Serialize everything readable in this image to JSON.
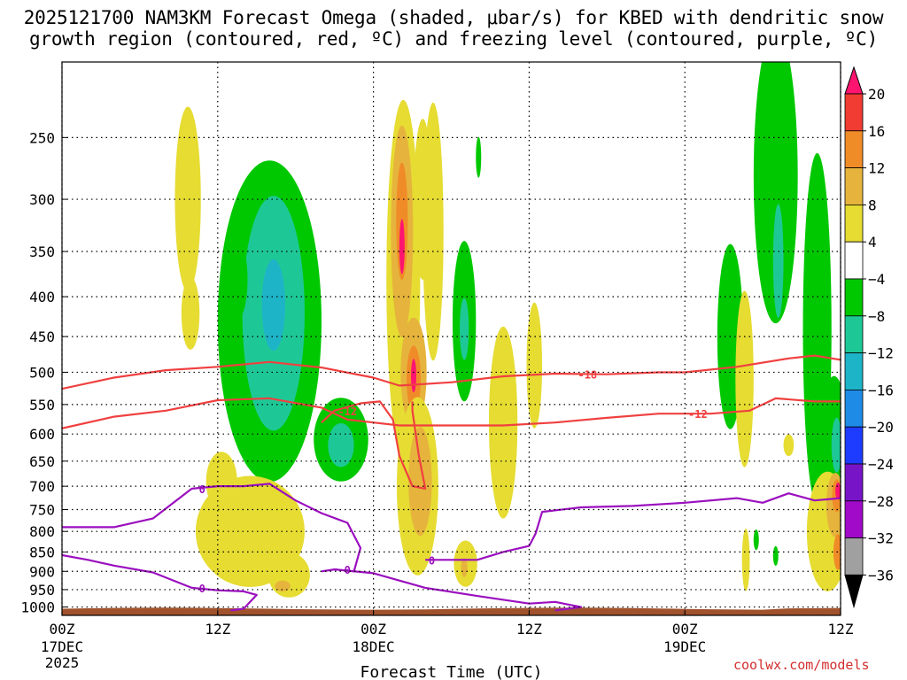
{
  "title": {
    "line1": "2025121700 NAM3KM Forecast Omega (shaded, μbar/s) for KBED with dendritic snow",
    "line2": "growth region (contoured, red, ºC) and freezing level (contoured, purple, ºC)"
  },
  "credit": "coolwx.com/models",
  "chart_data": {
    "type": "heatmap",
    "title": "2025121700 NAM3KM Forecast Omega (shaded, μbar/s) for KBED with dendritic snow growth region (contoured, red, ºC) and freezing level (contoured, purple, ºC)",
    "xlabel": "Forecast Time (UTC)",
    "ylabel": "",
    "x_ticks": [
      {
        "hour": 0,
        "label": "00Z",
        "sub": [
          "17DEC",
          "2025"
        ]
      },
      {
        "hour": 12,
        "label": "12Z",
        "sub": []
      },
      {
        "hour": 24,
        "label": "00Z",
        "sub": [
          "18DEC"
        ]
      },
      {
        "hour": 36,
        "label": "12Z",
        "sub": []
      },
      {
        "hour": 48,
        "label": "00Z",
        "sub": [
          "19DEC"
        ]
      },
      {
        "hour": 60,
        "label": "12Z",
        "sub": []
      }
    ],
    "xlim": [
      0,
      60
    ],
    "y_ticks": [
      250,
      300,
      350,
      400,
      450,
      500,
      550,
      600,
      650,
      700,
      750,
      800,
      850,
      900,
      950,
      1000
    ],
    "ylim": [
      200,
      1025
    ],
    "y_scale": "log-pressure",
    "grid": true,
    "colorbar": {
      "levels": [
        20,
        16,
        12,
        8,
        4,
        -4,
        -8,
        -12,
        -16,
        -20,
        -24,
        -28,
        -32,
        -36
      ],
      "colors": [
        "#ff1470",
        "#f03c32",
        "#f08c28",
        "#e6b43c",
        "#e6dc32",
        "#ffffff",
        "#00c800",
        "#1ec896",
        "#1eb4c8",
        "#1e8ce6",
        "#1e3cff",
        "#7814c8",
        "#a00ac8",
        "#a0a0a0",
        "#000000"
      ]
    },
    "contours": [
      {
        "name": "-18",
        "color": "#f04040",
        "label": "-18",
        "label_hour": 40.5,
        "points": [
          [
            0,
            525
          ],
          [
            4,
            508
          ],
          [
            8,
            497
          ],
          [
            12,
            492
          ],
          [
            16,
            485
          ],
          [
            20,
            493
          ],
          [
            24,
            508
          ],
          [
            26,
            520
          ],
          [
            30,
            515
          ],
          [
            34,
            506
          ],
          [
            38,
            502
          ],
          [
            42,
            503
          ],
          [
            46,
            500
          ],
          [
            48,
            500
          ],
          [
            52,
            492
          ],
          [
            56,
            480
          ],
          [
            58,
            476
          ],
          [
            60,
            482
          ]
        ]
      },
      {
        "name": "-12",
        "color": "#f04040",
        "label": "-12",
        "label_hour": 49,
        "points": [
          [
            0,
            590
          ],
          [
            4,
            570
          ],
          [
            8,
            560
          ],
          [
            12,
            543
          ],
          [
            16,
            540
          ],
          [
            20,
            555
          ],
          [
            22,
            575
          ],
          [
            24,
            580
          ],
          [
            26,
            585
          ],
          [
            30,
            585
          ],
          [
            34,
            585
          ],
          [
            38,
            580
          ],
          [
            42,
            572
          ],
          [
            46,
            565
          ],
          [
            50,
            565
          ],
          [
            53,
            560
          ],
          [
            55,
            540
          ],
          [
            58,
            545
          ],
          [
            60,
            545
          ]
        ]
      },
      {
        "name": "-12 (loop)",
        "color": "#f04040",
        "label": "-12",
        "label_hour": 22,
        "points": [
          [
            20,
            580
          ],
          [
            21,
            560
          ],
          [
            23,
            548
          ],
          [
            24.5,
            545
          ],
          [
            25.5,
            575
          ],
          [
            26,
            640
          ],
          [
            27,
            700
          ],
          [
            28,
            705
          ],
          [
            27.5,
            640
          ],
          [
            27,
            560
          ],
          [
            27,
            545
          ]
        ]
      },
      {
        "name": "0 (upper)",
        "color": "#9b0fbf",
        "label": "0",
        "label_hour": 10.8,
        "points": [
          [
            0,
            790
          ],
          [
            4,
            790
          ],
          [
            7,
            770
          ],
          [
            10,
            705
          ],
          [
            12,
            700
          ],
          [
            14,
            700
          ],
          [
            16,
            695
          ],
          [
            18,
            730
          ],
          [
            20,
            758
          ],
          [
            22,
            780
          ],
          [
            23,
            840
          ],
          [
            22.5,
            900
          ],
          [
            21,
            895
          ],
          [
            20,
            900
          ]
        ]
      },
      {
        "name": "0 (lower-left)",
        "color": "#9b0fbf",
        "label": "0",
        "label_hour": 10.8,
        "points": [
          [
            0,
            858
          ],
          [
            2,
            870
          ],
          [
            4,
            885
          ],
          [
            7,
            903
          ],
          [
            10,
            945
          ],
          [
            12,
            952
          ],
          [
            14,
            955
          ],
          [
            15,
            965
          ],
          [
            14,
            1005
          ],
          [
            13,
            1010
          ]
        ]
      },
      {
        "name": "0 (middle)",
        "color": "#9b0fbf",
        "label": "0",
        "label_hour": 28.5,
        "points": [
          [
            28,
            870
          ],
          [
            32,
            870
          ],
          [
            34,
            850
          ],
          [
            36,
            835
          ],
          [
            36.5,
            805
          ],
          [
            37,
            755
          ],
          [
            40,
            745
          ],
          [
            44,
            742
          ],
          [
            48,
            735
          ],
          [
            52,
            725
          ],
          [
            54,
            735
          ],
          [
            56,
            715
          ],
          [
            58,
            730
          ],
          [
            60,
            725
          ]
        ]
      },
      {
        "name": "0 (bottom)",
        "color": "#9b0fbf",
        "label": "0",
        "label_hour": 22,
        "points": [
          [
            21,
            895
          ],
          [
            24,
            905
          ],
          [
            28,
            945
          ],
          [
            32,
            968
          ],
          [
            36,
            990
          ],
          [
            38,
            985
          ],
          [
            40,
            1000
          ],
          [
            38,
            1010
          ]
        ]
      }
    ],
    "ground": {
      "color": "#a0522d",
      "pressure_top": 1005
    }
  }
}
